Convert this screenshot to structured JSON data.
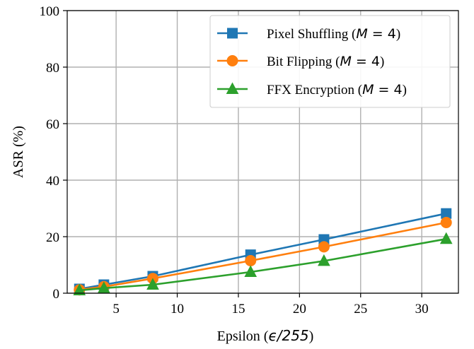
{
  "chart_data": {
    "type": "line",
    "xlabel_prefix": "Epsilon (",
    "xlabel_math": "ϵ/255",
    "xlabel_suffix": ")",
    "ylabel": "ASR (%)",
    "xlim": [
      1,
      33
    ],
    "ylim": [
      0,
      100
    ],
    "xticks": [
      5,
      10,
      15,
      20,
      25,
      30
    ],
    "yticks": [
      0,
      20,
      40,
      60,
      80,
      100
    ],
    "grid": true,
    "legend_position": "top-right",
    "x": [
      2,
      4,
      8,
      16,
      22,
      32
    ],
    "series": [
      {
        "name": "Pixel Shuffling",
        "name_math": "M",
        "name_math_rest": " = 4",
        "marker": "square",
        "color": "#1f77b4",
        "values": [
          1.5,
          3.0,
          6.0,
          13.6,
          19.0,
          28.2
        ]
      },
      {
        "name": "Bit Flipping",
        "name_math": "M",
        "name_math_rest": " = 4",
        "marker": "circle",
        "color": "#ff7f0e",
        "values": [
          1.2,
          2.3,
          5.2,
          11.5,
          16.4,
          25.0
        ]
      },
      {
        "name": "FFX Encryption",
        "name_math": "M",
        "name_math_rest": " = 4",
        "marker": "triangle",
        "color": "#2ca02c",
        "values": [
          1.0,
          1.8,
          3.0,
          7.5,
          11.4,
          19.2
        ]
      }
    ]
  }
}
